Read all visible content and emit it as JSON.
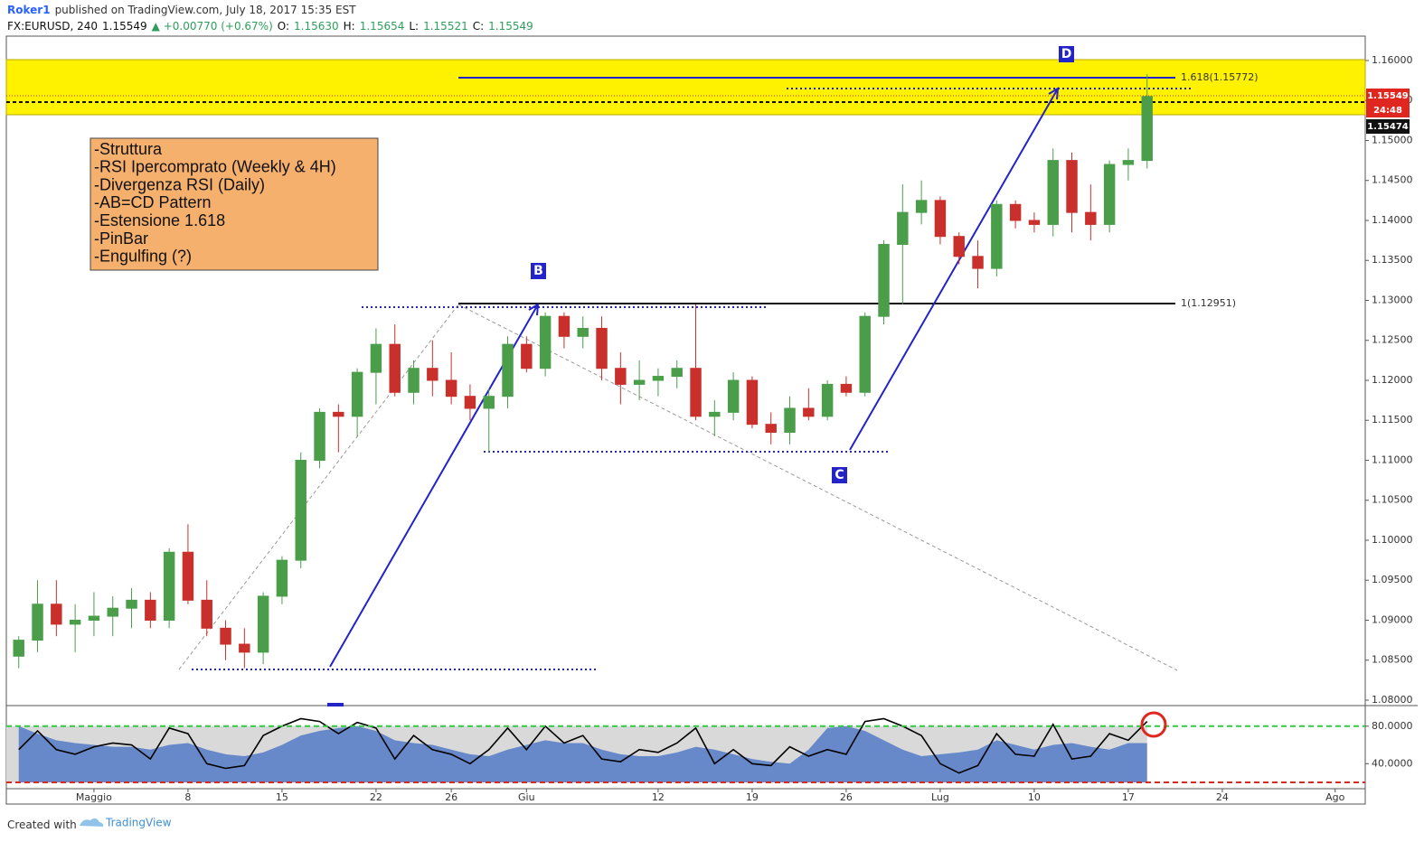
{
  "header": {
    "line1": [
      {
        "text": "Roker1",
        "color": "#2962ff"
      },
      {
        "text": "published on TradingView.com, July 18, 2017 15:35 EST",
        "color": "#333333"
      }
    ],
    "line2": [
      {
        "text": "FX:EURUSD, 240",
        "color": "#111111"
      },
      {
        "text": "1.15549",
        "color": "#111111"
      },
      {
        "text": "▲ +0.00770 (+0.67%)",
        "color": "#2e9e5b"
      },
      {
        "text": "O:",
        "color": "#111111"
      },
      {
        "text": "1.15630",
        "color": "#2e9e5b"
      },
      {
        "text": "H:",
        "color": "#111111"
      },
      {
        "text": "1.15654",
        "color": "#2e9e5b"
      },
      {
        "text": "L:",
        "color": "#111111"
      },
      {
        "text": "1.15521",
        "color": "#2e9e5b"
      },
      {
        "text": "C:",
        "color": "#111111"
      },
      {
        "text": "1.15549",
        "color": "#2e9e5b"
      }
    ]
  },
  "chart_data": [
    {
      "type": "candlestick",
      "x": [
        -4,
        -3,
        -2,
        -1,
        0,
        1,
        2,
        3,
        4,
        5,
        6,
        7,
        8,
        9,
        10,
        11,
        12,
        13,
        14,
        15,
        16,
        17,
        18,
        19,
        20,
        21,
        22,
        23,
        24,
        25,
        26,
        27,
        28,
        29,
        30,
        31,
        32,
        33,
        34,
        35,
        36,
        37,
        38,
        39,
        40,
        41,
        42,
        43,
        44,
        45,
        46,
        47,
        48,
        49,
        50,
        51,
        52,
        53,
        54,
        55,
        56
      ],
      "open": [
        1.0855,
        1.0875,
        1.092,
        1.0895,
        1.09,
        1.0905,
        1.0915,
        1.0925,
        1.09,
        1.0985,
        1.0925,
        1.089,
        1.087,
        1.086,
        1.093,
        1.0975,
        1.11,
        1.116,
        1.1155,
        1.121,
        1.1245,
        1.1185,
        1.1215,
        1.12,
        1.118,
        1.1165,
        1.118,
        1.1245,
        1.1215,
        1.128,
        1.1255,
        1.1265,
        1.1215,
        1.1195,
        1.12,
        1.1205,
        1.1215,
        1.1155,
        1.116,
        1.12,
        1.1145,
        1.1135,
        1.1165,
        1.1155,
        1.1195,
        1.1185,
        1.128,
        1.137,
        1.141,
        1.1425,
        1.138,
        1.1355,
        1.134,
        1.142,
        1.14,
        1.1395,
        1.1475,
        1.141,
        1.1395,
        1.147,
        1.1475
      ],
      "high": [
        1.088,
        1.095,
        1.095,
        1.092,
        1.0935,
        1.093,
        1.094,
        1.0935,
        1.099,
        1.102,
        1.095,
        1.09,
        1.089,
        1.0935,
        1.098,
        1.111,
        1.1165,
        1.117,
        1.1215,
        1.1265,
        1.127,
        1.1225,
        1.125,
        1.1235,
        1.1195,
        1.119,
        1.1255,
        1.1255,
        1.1285,
        1.1285,
        1.128,
        1.128,
        1.1235,
        1.1225,
        1.1215,
        1.1225,
        1.1295,
        1.1175,
        1.121,
        1.1205,
        1.116,
        1.118,
        1.119,
        1.12,
        1.1205,
        1.1285,
        1.1375,
        1.1445,
        1.145,
        1.143,
        1.1385,
        1.1375,
        1.1425,
        1.1425,
        1.141,
        1.149,
        1.1485,
        1.1445,
        1.1475,
        1.149,
        1.1583
      ],
      "low": [
        1.084,
        1.086,
        1.088,
        1.086,
        1.088,
        1.088,
        1.089,
        1.089,
        1.089,
        1.092,
        1.088,
        1.085,
        1.084,
        1.0845,
        1.092,
        1.0965,
        1.109,
        1.111,
        1.113,
        1.117,
        1.118,
        1.117,
        1.118,
        1.117,
        1.115,
        1.111,
        1.1165,
        1.121,
        1.1205,
        1.124,
        1.124,
        1.12,
        1.117,
        1.1175,
        1.118,
        1.119,
        1.115,
        1.113,
        1.115,
        1.114,
        1.112,
        1.112,
        1.115,
        1.115,
        1.118,
        1.118,
        1.127,
        1.1295,
        1.1395,
        1.137,
        1.1345,
        1.1315,
        1.133,
        1.139,
        1.1385,
        1.138,
        1.1385,
        1.1375,
        1.1385,
        1.145,
        1.1465
      ],
      "close": [
        1.0875,
        1.092,
        1.0895,
        1.09,
        1.0905,
        1.0915,
        1.0925,
        1.09,
        1.0985,
        1.0925,
        1.089,
        1.087,
        1.086,
        1.093,
        1.0975,
        1.11,
        1.116,
        1.1155,
        1.121,
        1.1245,
        1.1185,
        1.1215,
        1.12,
        1.118,
        1.1165,
        1.118,
        1.1245,
        1.1215,
        1.128,
        1.1255,
        1.1265,
        1.1215,
        1.1195,
        1.12,
        1.1205,
        1.1215,
        1.1155,
        1.116,
        1.12,
        1.1145,
        1.1135,
        1.1165,
        1.1155,
        1.1195,
        1.1185,
        1.128,
        1.137,
        1.141,
        1.1425,
        1.138,
        1.1355,
        1.134,
        1.142,
        1.14,
        1.1395,
        1.1475,
        1.141,
        1.1395,
        1.147,
        1.1475,
        1.1555
      ],
      "up_color": "#4a9e4a",
      "down_color": "#c9302c",
      "xlim": [
        -4.66,
        67.6
      ],
      "xticks": [
        {
          "value": 0,
          "label": "Maggio"
        },
        {
          "value": 5,
          "label": "8"
        },
        {
          "value": 10,
          "label": "15"
        },
        {
          "value": 15,
          "label": "22"
        },
        {
          "value": 19,
          "label": "26"
        },
        {
          "value": 23,
          "label": "Giu"
        },
        {
          "value": 30,
          "label": "12"
        },
        {
          "value": 35,
          "label": "19"
        },
        {
          "value": 40,
          "label": "26"
        },
        {
          "value": 45,
          "label": "Lug"
        },
        {
          "value": 50,
          "label": "10"
        },
        {
          "value": 55,
          "label": "17"
        },
        {
          "value": 60,
          "label": "24"
        },
        {
          "value": 66,
          "label": "Ago"
        }
      ],
      "ylim": [
        1.07932,
        1.16305
      ],
      "yticks": [
        {
          "value": 1.08,
          "label": "1.08000"
        },
        {
          "value": 1.085,
          "label": "1.08500"
        },
        {
          "value": 1.09,
          "label": "1.09000"
        },
        {
          "value": 1.095,
          "label": "1.09500"
        },
        {
          "value": 1.1,
          "label": "1.10000"
        },
        {
          "value": 1.105,
          "label": "1.10500"
        },
        {
          "value": 1.11,
          "label": "1.11000"
        },
        {
          "value": 1.115,
          "label": "1.11500"
        },
        {
          "value": 1.12,
          "label": "1.12000"
        },
        {
          "value": 1.125,
          "label": "1.12500"
        },
        {
          "value": 1.13,
          "label": "1.13000"
        },
        {
          "value": 1.135,
          "label": "1.13500"
        },
        {
          "value": 1.14,
          "label": "1.14000"
        },
        {
          "value": 1.145,
          "label": "1.14500"
        },
        {
          "value": 1.15,
          "label": "1.15000"
        },
        {
          "value": 1.155,
          "label": "1.15500"
        },
        {
          "value": 1.16,
          "label": "1.16000"
        }
      ],
      "price_tags": [
        {
          "text": "1.15549",
          "color": "#e0271f"
        },
        {
          "text": "24:48",
          "color": "#e0271f"
        },
        {
          "text": "1.15474",
          "color": "#111111"
        }
      ],
      "annotations": {
        "levels": [
          "1.618(1.15772)",
          "1(1.12951)"
        ],
        "points": [
          "D",
          "B",
          "C"
        ],
        "note": [
          "-Struttura",
          "-RSI Ipercomprato (Weekly & 4H)",
          "-Divergenza RSI (Daily)",
          "-AB=CD Pattern",
          "-Estensione 1.618",
          "-PinBar",
          "-Engulfing (?)"
        ]
      }
    },
    {
      "type": "line",
      "x": [
        -4,
        -3,
        -2,
        -1,
        0,
        1,
        2,
        3,
        4,
        5,
        6,
        7,
        8,
        9,
        10,
        11,
        12,
        13,
        14,
        15,
        16,
        17,
        18,
        19,
        20,
        21,
        22,
        23,
        24,
        25,
        26,
        27,
        28,
        29,
        30,
        31,
        32,
        33,
        34,
        35,
        36,
        37,
        38,
        39,
        40,
        41,
        42,
        43,
        44,
        45,
        46,
        47,
        48,
        49,
        50,
        51,
        52,
        53,
        54,
        55,
        56
      ],
      "series": [
        {
          "color": "#5b7fc7",
          "fill": true,
          "values": [
            80,
            72,
            65,
            62,
            60,
            58,
            58,
            55,
            60,
            62,
            55,
            50,
            48,
            52,
            60,
            70,
            75,
            78,
            80,
            75,
            65,
            62,
            60,
            55,
            50,
            48,
            55,
            60,
            65,
            62,
            62,
            55,
            50,
            48,
            48,
            52,
            58,
            55,
            50,
            45,
            42,
            40,
            55,
            78,
            80,
            75,
            65,
            55,
            48,
            50,
            52,
            55,
            65,
            60,
            55,
            60,
            62,
            58,
            55,
            62,
            62
          ]
        },
        {
          "color": "#000000",
          "fill": false,
          "values": [
            55,
            75,
            55,
            50,
            58,
            62,
            60,
            45,
            78,
            72,
            40,
            35,
            38,
            70,
            80,
            88,
            85,
            72,
            84,
            78,
            45,
            70,
            55,
            50,
            40,
            55,
            78,
            55,
            80,
            62,
            70,
            45,
            42,
            55,
            52,
            62,
            78,
            40,
            55,
            40,
            38,
            58,
            48,
            55,
            50,
            85,
            88,
            80,
            70,
            40,
            30,
            38,
            72,
            50,
            48,
            82,
            45,
            48,
            72,
            65,
            85
          ]
        }
      ],
      "levels": [
        {
          "value": 80,
          "color": "#2ecc40"
        },
        {
          "value": 20,
          "color": "#e0271f"
        }
      ],
      "ylim": [
        13.3,
        101
      ],
      "yticks": [
        {
          "value": 80,
          "label": "80.0000"
        },
        {
          "value": 40,
          "label": "40.0000"
        }
      ]
    }
  ],
  "footer": {
    "created": "Created with",
    "brand": "TradingView"
  }
}
